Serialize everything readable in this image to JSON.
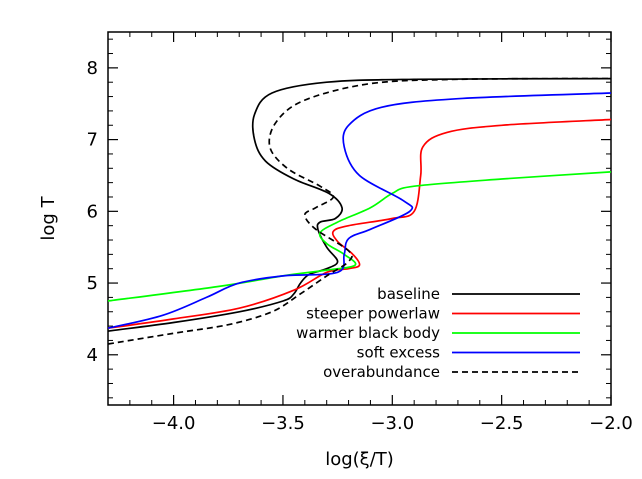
{
  "chart_data": {
    "type": "line",
    "title": "",
    "xlabel": "log(ξ/T)",
    "ylabel": "log T",
    "xlim": [
      -4.3,
      -2.0
    ],
    "ylim": [
      3.3,
      8.5
    ],
    "xticks": [
      -4.0,
      -3.5,
      -3.0,
      -2.5,
      -2.0
    ],
    "xtick_labels": [
      "−4.0",
      "−3.5",
      "−3.0",
      "−2.5",
      "−2.0"
    ],
    "yticks": [
      4,
      5,
      6,
      7,
      8
    ],
    "ytick_labels": [
      "4",
      "5",
      "6",
      "7",
      "8"
    ],
    "grid": false,
    "legend_position": "bottom-right",
    "series": [
      {
        "name": "baseline",
        "color": "#000000",
        "dash": "solid",
        "points": [
          [
            -4.3,
            4.33
          ],
          [
            -4.0,
            4.45
          ],
          [
            -3.7,
            4.6
          ],
          [
            -3.5,
            4.75
          ],
          [
            -3.45,
            4.85
          ],
          [
            -3.42,
            5.0
          ],
          [
            -3.38,
            5.12
          ],
          [
            -3.3,
            5.2
          ],
          [
            -3.25,
            5.3
          ],
          [
            -3.3,
            5.5
          ],
          [
            -3.34,
            5.75
          ],
          [
            -3.33,
            5.85
          ],
          [
            -3.26,
            5.9
          ],
          [
            -3.23,
            6.05
          ],
          [
            -3.29,
            6.25
          ],
          [
            -3.45,
            6.45
          ],
          [
            -3.58,
            6.7
          ],
          [
            -3.63,
            7.0
          ],
          [
            -3.63,
            7.35
          ],
          [
            -3.55,
            7.65
          ],
          [
            -3.3,
            7.8
          ],
          [
            -2.9,
            7.84
          ],
          [
            -2.0,
            7.85
          ]
        ]
      },
      {
        "name": "steeper powerlaw",
        "color": "#ff0000",
        "dash": "solid",
        "points": [
          [
            -4.3,
            4.37
          ],
          [
            -4.0,
            4.5
          ],
          [
            -3.7,
            4.65
          ],
          [
            -3.45,
            4.9
          ],
          [
            -3.3,
            5.15
          ],
          [
            -3.2,
            5.2
          ],
          [
            -3.15,
            5.25
          ],
          [
            -3.18,
            5.4
          ],
          [
            -3.25,
            5.58
          ],
          [
            -3.27,
            5.72
          ],
          [
            -3.2,
            5.8
          ],
          [
            -3.0,
            5.9
          ],
          [
            -2.9,
            6.0
          ],
          [
            -2.87,
            6.5
          ],
          [
            -2.86,
            6.9
          ],
          [
            -2.75,
            7.1
          ],
          [
            -2.5,
            7.2
          ],
          [
            -2.0,
            7.28
          ]
        ]
      },
      {
        "name": "warmer black body",
        "color": "#00ff00",
        "dash": "solid",
        "points": [
          [
            -4.3,
            4.75
          ],
          [
            -3.8,
            4.95
          ],
          [
            -3.5,
            5.1
          ],
          [
            -3.3,
            5.18
          ],
          [
            -3.17,
            5.25
          ],
          [
            -3.22,
            5.4
          ],
          [
            -3.3,
            5.55
          ],
          [
            -3.33,
            5.7
          ],
          [
            -3.25,
            5.85
          ],
          [
            -3.1,
            6.05
          ],
          [
            -3.0,
            6.25
          ],
          [
            -2.9,
            6.35
          ],
          [
            -2.5,
            6.45
          ],
          [
            -2.0,
            6.55
          ]
        ]
      },
      {
        "name": "soft excess",
        "color": "#0000ff",
        "dash": "solid",
        "points": [
          [
            -4.3,
            4.37
          ],
          [
            -4.05,
            4.55
          ],
          [
            -3.85,
            4.8
          ],
          [
            -3.7,
            5.0
          ],
          [
            -3.5,
            5.1
          ],
          [
            -3.25,
            5.15
          ],
          [
            -3.22,
            5.4
          ],
          [
            -3.2,
            5.62
          ],
          [
            -3.1,
            5.75
          ],
          [
            -2.92,
            6.0
          ],
          [
            -2.95,
            6.15
          ],
          [
            -3.15,
            6.5
          ],
          [
            -3.22,
            6.9
          ],
          [
            -3.2,
            7.2
          ],
          [
            -3.05,
            7.45
          ],
          [
            -2.7,
            7.57
          ],
          [
            -2.0,
            7.65
          ]
        ]
      },
      {
        "name": "overabundance",
        "color": "#000000",
        "dash": "dashed",
        "points": [
          [
            -4.3,
            4.15
          ],
          [
            -4.0,
            4.3
          ],
          [
            -3.75,
            4.42
          ],
          [
            -3.55,
            4.6
          ],
          [
            -3.42,
            4.85
          ],
          [
            -3.3,
            5.1
          ],
          [
            -3.2,
            5.3
          ],
          [
            -3.2,
            5.45
          ],
          [
            -3.35,
            5.75
          ],
          [
            -3.4,
            5.95
          ],
          [
            -3.35,
            6.05
          ],
          [
            -3.27,
            6.2
          ],
          [
            -3.33,
            6.35
          ],
          [
            -3.48,
            6.6
          ],
          [
            -3.56,
            6.9
          ],
          [
            -3.53,
            7.25
          ],
          [
            -3.4,
            7.55
          ],
          [
            -3.1,
            7.78
          ],
          [
            -2.7,
            7.84
          ],
          [
            -2.0,
            7.85
          ]
        ]
      }
    ]
  }
}
